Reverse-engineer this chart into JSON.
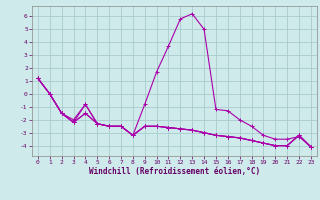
{
  "xlabel": "Windchill (Refroidissement éolien,°C)",
  "background_color": "#ceeaea",
  "grid_color": "#aacccc",
  "line_color": "#aa00aa",
  "x": [
    0,
    1,
    2,
    3,
    4,
    5,
    6,
    7,
    8,
    9,
    10,
    11,
    12,
    13,
    14,
    15,
    16,
    17,
    18,
    19,
    20,
    21,
    22,
    23
  ],
  "series": [
    [
      1.2,
      0.0,
      -1.5,
      -2.2,
      -0.8,
      -2.3,
      -2.5,
      -2.5,
      -3.2,
      -2.5,
      -2.5,
      -2.6,
      -2.7,
      -2.8,
      -3.0,
      -3.2,
      -3.3,
      -3.4,
      -3.6,
      -3.8,
      -4.0,
      -4.0,
      -3.2,
      -4.1
    ],
    [
      1.2,
      0.0,
      -1.5,
      -2.2,
      -1.5,
      -2.3,
      -2.5,
      -2.5,
      -3.2,
      -2.5,
      -2.5,
      -2.6,
      -2.7,
      -2.8,
      -3.0,
      -3.2,
      -3.3,
      -3.4,
      -3.6,
      -3.8,
      -4.0,
      -4.0,
      -3.2,
      -4.1
    ],
    [
      1.2,
      0.0,
      -1.5,
      -2.2,
      -1.5,
      -2.3,
      -2.5,
      -2.5,
      -3.2,
      -2.5,
      -2.5,
      -2.6,
      -2.7,
      -2.8,
      -3.0,
      -3.2,
      -3.3,
      -3.4,
      -3.6,
      -3.8,
      -4.0,
      -4.0,
      -3.2,
      -4.1
    ],
    [
      1.2,
      0.0,
      -1.5,
      -2.0,
      -0.8,
      -2.3,
      -2.5,
      -2.5,
      -3.2,
      -0.8,
      1.7,
      3.7,
      5.8,
      6.2,
      5.0,
      -1.2,
      -1.3,
      -2.0,
      -2.5,
      -3.2,
      -3.5,
      -3.5,
      -3.3,
      -4.1
    ]
  ],
  "ylim": [
    -4.8,
    6.8
  ],
  "xlim": [
    -0.5,
    23.5
  ],
  "yticks": [
    -4,
    -3,
    -2,
    -1,
    0,
    1,
    2,
    3,
    4,
    5,
    6
  ],
  "xticks": [
    0,
    1,
    2,
    3,
    4,
    5,
    6,
    7,
    8,
    9,
    10,
    11,
    12,
    13,
    14,
    15,
    16,
    17,
    18,
    19,
    20,
    21,
    22,
    23
  ],
  "marker": "+",
  "markersize": 3,
  "linewidth": 0.8,
  "tick_fontsize": 4.5,
  "xlabel_fontsize": 5.5
}
